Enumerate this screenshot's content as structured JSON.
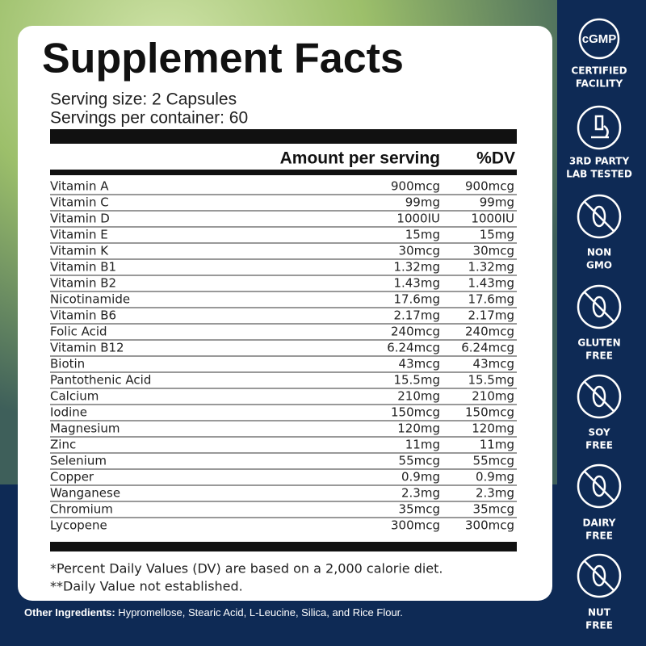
{
  "label": {
    "title": "Supplement Facts",
    "serving_size": "Serving size: 2 Capsules",
    "servings_per_container": "Servings per container: 60",
    "header": {
      "amount": "Amount per serving",
      "dv": "%DV"
    },
    "rows": [
      [
        "Vitamin A",
        "900mcg",
        "900mcg"
      ],
      [
        "Vitamin C",
        "99mg",
        "99mg"
      ],
      [
        "Vitamin D",
        "1000IU",
        "1000IU"
      ],
      [
        "Vitamin E",
        "15mg",
        "15mg"
      ],
      [
        "Vitamin K",
        "30mcg",
        "30mcg"
      ],
      [
        "Vitamin B1",
        "1.32mg",
        "1.32mg"
      ],
      [
        "Vitamin B2",
        "1.43mg",
        "1.43mg"
      ],
      [
        "Nicotinamide",
        "17.6mg",
        "17.6mg"
      ],
      [
        "Vitamin B6",
        "2.17mg",
        "2.17mg"
      ],
      [
        "Folic Acid",
        "240mcg",
        "240mcg"
      ],
      [
        "Vitamin B12",
        "6.24mcg",
        "6.24mcg"
      ],
      [
        "Biotin",
        "43mcg",
        "43mcg"
      ],
      [
        "Pantothenic Acid",
        "15.5mg",
        "15.5mg"
      ],
      [
        "Calcium",
        "210mg",
        "210mg"
      ],
      [
        "Iodine",
        "150mcg",
        "150mcg"
      ],
      [
        "Magnesium",
        "120mg",
        "120mg"
      ],
      [
        "Zinc",
        "11mg",
        "11mg"
      ],
      [
        "Selenium",
        "55mcg",
        "55mcg"
      ],
      [
        "Copper",
        "0.9mg",
        "0.9mg"
      ],
      [
        "Wanganese",
        "2.3mg",
        "2.3mg"
      ],
      [
        "Chromium",
        "35mcg",
        "35mcg"
      ],
      [
        "Lycopene",
        "300mcg",
        "300mcg"
      ]
    ],
    "footnotes": [
      "*Percent Daily Values (DV) are based on a 2,000 calorie diet.",
      "**Daily Value not established."
    ]
  },
  "other_ingredients": {
    "label": "Other Ingredients:",
    "text": " Hypromellose, Stearic Acid, L-Leucine, Silica, and Rice Flour."
  },
  "badges": [
    {
      "icon": "cGMP",
      "lines": [
        "CERTIFIED",
        "FACILITY"
      ]
    },
    {
      "lines": [
        "3RD PARTY",
        "LAB TESTED"
      ]
    },
    {
      "lines": [
        "NON",
        "GMO"
      ]
    },
    {
      "lines": [
        "GLUTEN",
        "FREE"
      ]
    },
    {
      "lines": [
        "SOY",
        "FREE"
      ]
    },
    {
      "lines": [
        "DAIRY",
        "FREE"
      ]
    },
    {
      "lines": [
        "NUT",
        "FREE"
      ]
    }
  ]
}
